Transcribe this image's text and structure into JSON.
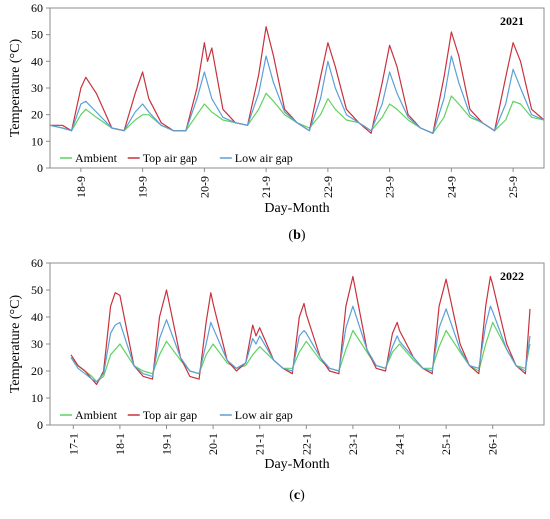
{
  "colors": {
    "ambient": "#5fd35f",
    "top": "#c8323c",
    "low": "#5aa0d8",
    "axis": "#8c8c8c"
  },
  "chart_data": [
    {
      "type": "line",
      "panel_label": "(b)",
      "annotation": "2021",
      "xlabel": "Day-Month",
      "ylabel": "Temperature (°C)",
      "ylim": [
        0,
        60
      ],
      "yticks": [
        0,
        10,
        20,
        30,
        40,
        50,
        60
      ],
      "xlim": [
        0,
        8
      ],
      "xticks": [
        {
          "x": 0.5,
          "label": "18-9"
        },
        {
          "x": 1.5,
          "label": "19-9"
        },
        {
          "x": 2.5,
          "label": "20-9"
        },
        {
          "x": 3.5,
          "label": "21-9"
        },
        {
          "x": 4.5,
          "label": "22-9"
        },
        {
          "x": 5.5,
          "label": "23-9"
        },
        {
          "x": 6.5,
          "label": "24-9"
        },
        {
          "x": 7.5,
          "label": "25-9"
        }
      ],
      "legend_position": "bottom-left",
      "series": [
        {
          "name": "Ambient",
          "color_key": "ambient",
          "x": [
            0,
            0.2,
            0.35,
            0.5,
            0.58,
            0.75,
            1.0,
            1.2,
            1.38,
            1.5,
            1.6,
            1.8,
            2.0,
            2.2,
            2.38,
            2.5,
            2.62,
            2.8,
            3.0,
            3.2,
            3.38,
            3.5,
            3.62,
            3.8,
            4.0,
            4.2,
            4.38,
            4.5,
            4.62,
            4.8,
            5.0,
            5.2,
            5.38,
            5.5,
            5.62,
            5.8,
            6.0,
            6.2,
            6.38,
            6.5,
            6.62,
            6.8,
            7.0,
            7.2,
            7.38,
            7.5,
            7.62,
            7.8,
            8.0
          ],
          "values": [
            16,
            15,
            14,
            20,
            22,
            19,
            15,
            14,
            18,
            20,
            20,
            16,
            14,
            14,
            20,
            24,
            21,
            18,
            17,
            16,
            22,
            28,
            25,
            20,
            17,
            15,
            20,
            26,
            22,
            18,
            17,
            14,
            19,
            24,
            22,
            18,
            15,
            13,
            19,
            27,
            24,
            19,
            17,
            14,
            18,
            25,
            24,
            19,
            18
          ]
        },
        {
          "name": "Top air gap",
          "color_key": "top",
          "x": [
            0,
            0.2,
            0.35,
            0.5,
            0.58,
            0.75,
            1.0,
            1.2,
            1.38,
            1.5,
            1.6,
            1.8,
            2.0,
            2.2,
            2.38,
            2.5,
            2.55,
            2.62,
            2.8,
            3.0,
            3.2,
            3.38,
            3.5,
            3.62,
            3.8,
            4.0,
            4.2,
            4.38,
            4.5,
            4.62,
            4.8,
            5.0,
            5.2,
            5.38,
            5.5,
            5.62,
            5.8,
            6.0,
            6.2,
            6.38,
            6.5,
            6.62,
            6.8,
            7.0,
            7.2,
            7.38,
            7.5,
            7.62,
            7.8,
            8.0
          ],
          "values": [
            16,
            16,
            14,
            30,
            34,
            28,
            15,
            14,
            28,
            36,
            26,
            17,
            14,
            14,
            30,
            47,
            40,
            45,
            22,
            17,
            16,
            35,
            53,
            42,
            22,
            17,
            14,
            34,
            47,
            38,
            22,
            17,
            13,
            32,
            46,
            38,
            20,
            15,
            13,
            34,
            51,
            42,
            22,
            17,
            14,
            34,
            47,
            40,
            22,
            18
          ]
        },
        {
          "name": "Low air gap",
          "color_key": "low",
          "x": [
            0,
            0.2,
            0.35,
            0.5,
            0.58,
            0.75,
            1.0,
            1.2,
            1.38,
            1.5,
            1.6,
            1.8,
            2.0,
            2.2,
            2.38,
            2.5,
            2.62,
            2.8,
            3.0,
            3.2,
            3.38,
            3.5,
            3.62,
            3.8,
            4.0,
            4.2,
            4.38,
            4.5,
            4.62,
            4.8,
            5.0,
            5.2,
            5.38,
            5.5,
            5.62,
            5.8,
            6.0,
            6.2,
            6.38,
            6.5,
            6.62,
            6.8,
            7.0,
            7.2,
            7.38,
            7.5,
            7.62,
            7.8,
            8.0
          ],
          "values": [
            16,
            15,
            14,
            24,
            25,
            21,
            15,
            14,
            21,
            24,
            21,
            16,
            14,
            14,
            26,
            36,
            26,
            19,
            17,
            16,
            28,
            42,
            32,
            21,
            17,
            14,
            26,
            40,
            30,
            20,
            17,
            14,
            24,
            36,
            28,
            19,
            15,
            13,
            26,
            42,
            32,
            20,
            17,
            14,
            24,
            37,
            30,
            20,
            18
          ]
        }
      ]
    },
    {
      "type": "line",
      "panel_label": "(c)",
      "annotation": "2022",
      "xlabel": "Day-Month",
      "ylabel": "Temperature (°C)",
      "ylim": [
        0,
        60
      ],
      "yticks": [
        0,
        10,
        20,
        30,
        40,
        50,
        60
      ],
      "xlim": [
        0,
        10.6
      ],
      "xticks": [
        {
          "x": 0.5,
          "label": "17-1"
        },
        {
          "x": 1.5,
          "label": "18-1"
        },
        {
          "x": 2.5,
          "label": "19-1"
        },
        {
          "x": 3.5,
          "label": "20-1"
        },
        {
          "x": 4.5,
          "label": "21-1"
        },
        {
          "x": 5.5,
          "label": "22-1"
        },
        {
          "x": 6.5,
          "label": "23-1"
        },
        {
          "x": 7.5,
          "label": "24-1"
        },
        {
          "x": 8.5,
          "label": "25-1"
        },
        {
          "x": 9.5,
          "label": "26-1"
        }
      ],
      "legend_position": "bottom-left",
      "series": [
        {
          "name": "Ambient",
          "color_key": "ambient",
          "x": [
            0.45,
            0.6,
            0.75,
            0.9,
            1.0,
            1.15,
            1.3,
            1.5,
            1.8,
            2.0,
            2.2,
            2.35,
            2.5,
            2.8,
            3.0,
            3.2,
            3.35,
            3.5,
            3.8,
            4.0,
            4.2,
            4.35,
            4.5,
            4.8,
            5.0,
            5.2,
            5.35,
            5.5,
            5.8,
            6.0,
            6.2,
            6.35,
            6.5,
            6.8,
            7.0,
            7.2,
            7.35,
            7.5,
            7.8,
            8.0,
            8.2,
            8.35,
            8.5,
            8.8,
            9.0,
            9.2,
            9.35,
            9.5,
            9.8,
            10.0,
            10.2,
            10.3
          ],
          "values": [
            25,
            22,
            20,
            18,
            16,
            18,
            26,
            30,
            22,
            20,
            19,
            26,
            31,
            24,
            20,
            19,
            26,
            30,
            23,
            21,
            22,
            26,
            29,
            24,
            21,
            21,
            27,
            31,
            24,
            21,
            20,
            28,
            35,
            27,
            22,
            21,
            27,
            30,
            24,
            21,
            21,
            29,
            35,
            27,
            22,
            20,
            30,
            38,
            28,
            22,
            21,
            30
          ]
        },
        {
          "name": "Top air gap",
          "color_key": "top",
          "x": [
            0.45,
            0.6,
            0.75,
            0.9,
            1.0,
            1.15,
            1.3,
            1.4,
            1.5,
            1.8,
            2.0,
            2.2,
            2.35,
            2.5,
            2.8,
            3.0,
            3.2,
            3.35,
            3.45,
            3.5,
            3.8,
            4.0,
            4.2,
            4.35,
            4.42,
            4.5,
            4.8,
            5.0,
            5.2,
            5.35,
            5.45,
            5.5,
            5.8,
            6.0,
            6.2,
            6.35,
            6.5,
            6.8,
            7.0,
            7.2,
            7.35,
            7.45,
            7.5,
            7.8,
            8.0,
            8.2,
            8.35,
            8.5,
            8.8,
            9.0,
            9.2,
            9.35,
            9.45,
            9.5,
            9.8,
            10.0,
            10.2,
            10.3
          ],
          "values": [
            26,
            22,
            20,
            17,
            15,
            20,
            44,
            49,
            48,
            22,
            18,
            17,
            40,
            50,
            25,
            18,
            17,
            38,
            49,
            45,
            24,
            20,
            23,
            37,
            33,
            36,
            24,
            21,
            19,
            40,
            45,
            41,
            25,
            20,
            19,
            44,
            55,
            28,
            21,
            20,
            34,
            38,
            35,
            25,
            21,
            19,
            44,
            54,
            30,
            22,
            19,
            44,
            55,
            52,
            30,
            22,
            19,
            43
          ]
        },
        {
          "name": "Low air gap",
          "color_key": "low",
          "x": [
            0.45,
            0.6,
            0.75,
            0.9,
            1.0,
            1.15,
            1.3,
            1.4,
            1.5,
            1.8,
            2.0,
            2.2,
            2.35,
            2.5,
            2.8,
            3.0,
            3.2,
            3.35,
            3.45,
            3.5,
            3.8,
            4.0,
            4.2,
            4.35,
            4.42,
            4.5,
            4.8,
            5.0,
            5.2,
            5.35,
            5.45,
            5.5,
            5.8,
            6.0,
            6.2,
            6.35,
            6.5,
            6.8,
            7.0,
            7.2,
            7.35,
            7.45,
            7.5,
            7.8,
            8.0,
            8.2,
            8.35,
            8.5,
            8.8,
            9.0,
            9.2,
            9.35,
            9.45,
            9.5,
            9.8,
            10.0,
            10.2,
            10.3
          ],
          "values": [
            25,
            21,
            19,
            17,
            16,
            19,
            34,
            37,
            38,
            22,
            19,
            18,
            32,
            39,
            25,
            20,
            19,
            30,
            38,
            36,
            24,
            21,
            23,
            32,
            30,
            33,
            24,
            21,
            20,
            33,
            35,
            34,
            25,
            21,
            20,
            36,
            44,
            28,
            22,
            21,
            29,
            33,
            31,
            25,
            21,
            20,
            36,
            43,
            28,
            22,
            21,
            37,
            44,
            42,
            28,
            22,
            20,
            33
          ]
        }
      ]
    }
  ]
}
